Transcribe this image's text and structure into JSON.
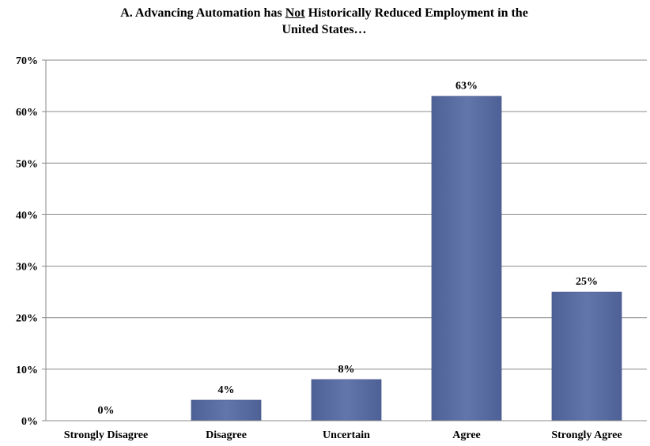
{
  "chart_data": {
    "type": "bar",
    "title_parts": [
      "A. Advancing Automation has ",
      "Not",
      " Historically Reduced Employment in the",
      "United States…"
    ],
    "categories": [
      "Strongly Disagree",
      "Disagree",
      "Uncertain",
      "Agree",
      "Strongly Agree"
    ],
    "values": [
      0,
      4,
      8,
      63,
      25
    ],
    "data_labels": [
      "0%",
      "4%",
      "8%",
      "63%",
      "25%"
    ],
    "y_ticks": [
      "0%",
      "10%",
      "20%",
      "30%",
      "40%",
      "50%",
      "60%",
      "70%"
    ],
    "ylim": [
      0,
      70
    ],
    "grid": true,
    "bar_color": "#5b6fa3"
  }
}
